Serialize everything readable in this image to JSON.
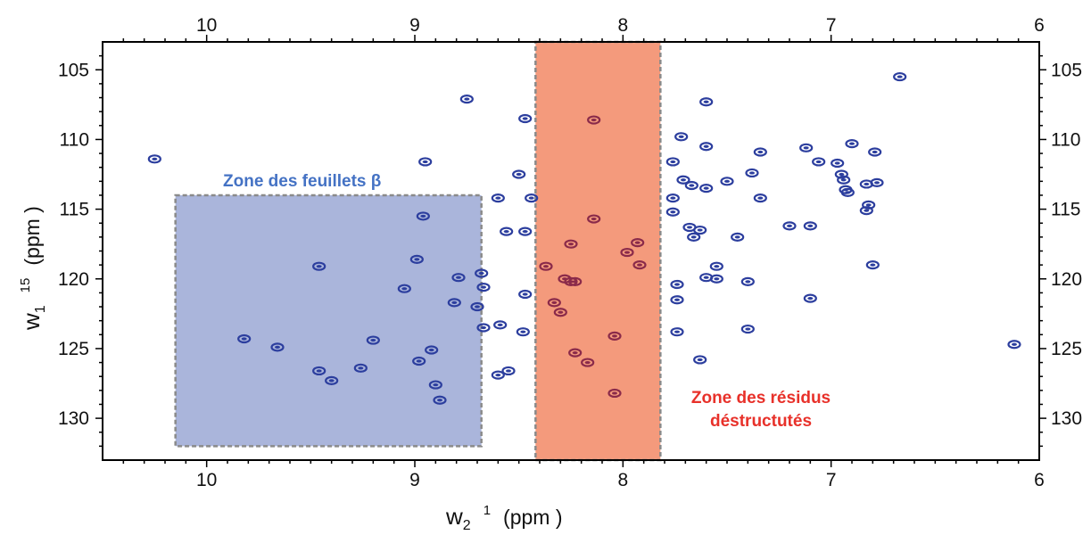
{
  "chart_data": {
    "type": "scatter",
    "xlabel": {
      "main": "w",
      "sub": "2",
      "sup": "1",
      "unit": "(ppm )"
    },
    "ylabel": {
      "main": "w",
      "sub": "1",
      "sup": "15",
      "unit": "(ppm )"
    },
    "xlim": [
      10.5,
      6.0
    ],
    "ylim": [
      103,
      133
    ],
    "x_reversed": true,
    "y_reversed": true,
    "x_ticks": [
      "10",
      "9",
      "8",
      "7",
      "6"
    ],
    "x_tick_values": [
      10,
      9,
      8,
      7,
      6
    ],
    "y_ticks": [
      "105",
      "110",
      "115",
      "120",
      "125",
      "130"
    ],
    "y_tick_values": [
      105,
      110,
      115,
      120,
      125,
      130
    ],
    "grid": false,
    "regions": [
      {
        "label": "Zone des  feuillets β",
        "x_range": [
          10.15,
          8.68
        ],
        "y_range": [
          114,
          132
        ],
        "fill": "#aab5db",
        "label_color": "#4472c4"
      },
      {
        "label_lines": [
          "Zone des résidus",
          "déstructutés"
        ],
        "x_range": [
          8.42,
          7.82
        ],
        "y_range": [
          103,
          133
        ],
        "fill": "#f49a7c",
        "label_color": "#e8312a"
      }
    ],
    "colors": {
      "peak": "#2c3e9e",
      "peak_in_red_zone": "#8a2a4a",
      "axis": "#000000"
    },
    "peaks": [
      [
        10.25,
        111.4
      ],
      [
        9.82,
        124.3
      ],
      [
        9.66,
        124.9
      ],
      [
        9.46,
        119.1
      ],
      [
        9.46,
        126.6
      ],
      [
        9.4,
        127.3
      ],
      [
        9.26,
        126.4
      ],
      [
        9.2,
        124.4
      ],
      [
        9.05,
        120.7
      ],
      [
        8.99,
        118.6
      ],
      [
        8.98,
        125.9
      ],
      [
        8.96,
        115.5
      ],
      [
        8.95,
        111.6
      ],
      [
        8.92,
        125.1
      ],
      [
        8.9,
        127.6
      ],
      [
        8.88,
        128.7
      ],
      [
        8.81,
        121.7
      ],
      [
        8.79,
        119.9
      ],
      [
        8.75,
        107.1
      ],
      [
        8.7,
        122.0
      ],
      [
        8.68,
        119.6
      ],
      [
        8.67,
        120.6
      ],
      [
        8.67,
        123.5
      ],
      [
        8.6,
        114.2
      ],
      [
        8.6,
        126.9
      ],
      [
        8.59,
        123.3
      ],
      [
        8.56,
        116.6
      ],
      [
        8.55,
        126.6
      ],
      [
        8.5,
        112.5
      ],
      [
        8.47,
        116.6
      ],
      [
        8.47,
        121.1
      ],
      [
        8.47,
        108.5
      ],
      [
        8.48,
        123.8
      ],
      [
        8.44,
        114.2
      ],
      [
        8.37,
        119.1
      ],
      [
        8.33,
        121.7
      ],
      [
        8.3,
        122.4
      ],
      [
        8.28,
        120.0
      ],
      [
        8.25,
        120.2
      ],
      [
        8.23,
        120.2
      ],
      [
        8.25,
        117.5
      ],
      [
        8.23,
        125.3
      ],
      [
        8.17,
        126.0
      ],
      [
        8.14,
        108.6
      ],
      [
        8.14,
        115.7
      ],
      [
        8.04,
        124.1
      ],
      [
        8.04,
        128.2
      ],
      [
        7.98,
        118.1
      ],
      [
        7.93,
        117.4
      ],
      [
        7.92,
        119.0
      ],
      [
        7.76,
        111.6
      ],
      [
        7.76,
        114.2
      ],
      [
        7.76,
        115.2
      ],
      [
        7.74,
        120.4
      ],
      [
        7.74,
        121.5
      ],
      [
        7.74,
        123.8
      ],
      [
        7.72,
        109.8
      ],
      [
        7.71,
        112.9
      ],
      [
        7.68,
        116.3
      ],
      [
        7.67,
        113.3
      ],
      [
        7.66,
        117.0
      ],
      [
        7.63,
        116.5
      ],
      [
        7.63,
        125.8
      ],
      [
        7.6,
        107.3
      ],
      [
        7.6,
        110.5
      ],
      [
        7.6,
        113.5
      ],
      [
        7.6,
        119.9
      ],
      [
        7.55,
        119.1
      ],
      [
        7.55,
        120.0
      ],
      [
        7.5,
        113.0
      ],
      [
        7.45,
        117.0
      ],
      [
        7.4,
        120.2
      ],
      [
        7.4,
        123.6
      ],
      [
        7.38,
        112.4
      ],
      [
        7.34,
        114.2
      ],
      [
        7.34,
        110.9
      ],
      [
        7.2,
        116.2
      ],
      [
        7.12,
        110.6
      ],
      [
        7.1,
        116.2
      ],
      [
        7.1,
        121.4
      ],
      [
        7.06,
        111.6
      ],
      [
        6.97,
        111.7
      ],
      [
        6.95,
        112.5
      ],
      [
        6.94,
        112.9
      ],
      [
        6.93,
        113.6
      ],
      [
        6.92,
        113.8
      ],
      [
        6.9,
        110.3
      ],
      [
        6.83,
        113.2
      ],
      [
        6.83,
        115.1
      ],
      [
        6.82,
        114.7
      ],
      [
        6.8,
        119.0
      ],
      [
        6.79,
        110.9
      ],
      [
        6.78,
        113.1
      ],
      [
        6.67,
        105.5
      ],
      [
        6.12,
        124.7
      ]
    ]
  }
}
